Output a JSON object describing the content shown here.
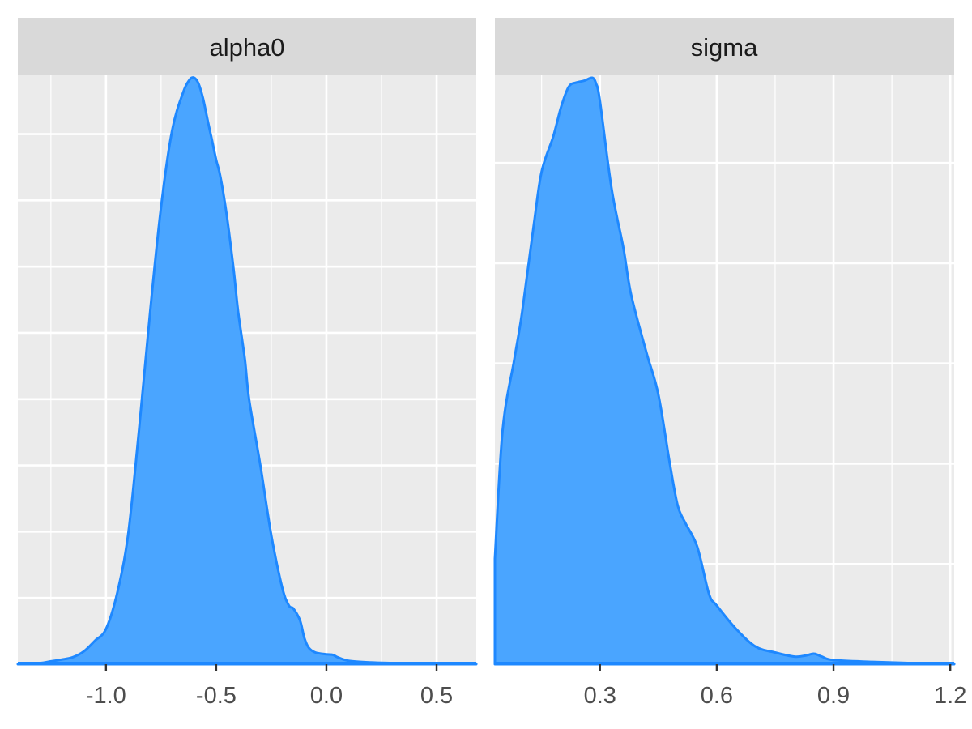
{
  "chart_data": [
    {
      "type": "area",
      "facet": "alpha0",
      "x_ticks": [
        -1.0,
        -0.5,
        0.0,
        0.5
      ],
      "x_tick_labels": [
        "-1.0",
        "-0.5",
        "0.0",
        "0.5"
      ],
      "xlim": [
        -1.4,
        0.68
      ],
      "ylim": [
        0,
        1.0
      ],
      "grid": true,
      "fill_color": "#4aa5ff",
      "line_color": "#1e88ff",
      "x": [
        -1.4,
        -1.3,
        -1.25,
        -1.2,
        -1.15,
        -1.1,
        -1.05,
        -1.0,
        -0.95,
        -0.9,
        -0.85,
        -0.8,
        -0.75,
        -0.7,
        -0.65,
        -0.62,
        -0.6,
        -0.58,
        -0.56,
        -0.54,
        -0.52,
        -0.5,
        -0.48,
        -0.45,
        -0.42,
        -0.4,
        -0.37,
        -0.35,
        -0.3,
        -0.25,
        -0.2,
        -0.17,
        -0.15,
        -0.12,
        -0.1,
        -0.08,
        -0.05,
        0.0,
        0.03,
        0.05,
        0.1,
        0.2,
        0.3,
        0.5,
        0.68
      ],
      "y": [
        0.0,
        0.002,
        0.005,
        0.008,
        0.012,
        0.022,
        0.04,
        0.06,
        0.12,
        0.22,
        0.4,
        0.6,
        0.78,
        0.91,
        0.975,
        0.997,
        1.0,
        0.99,
        0.965,
        0.93,
        0.895,
        0.86,
        0.83,
        0.76,
        0.67,
        0.6,
        0.52,
        0.45,
        0.34,
        0.22,
        0.13,
        0.1,
        0.095,
        0.075,
        0.045,
        0.028,
        0.02,
        0.017,
        0.016,
        0.012,
        0.006,
        0.003,
        0.002,
        0.001,
        0.001
      ]
    },
    {
      "type": "area",
      "facet": "sigma",
      "x_ticks": [
        0.3,
        0.6,
        0.9,
        1.2
      ],
      "x_tick_labels": [
        "0.3",
        "0.6",
        "0.9",
        "1.2"
      ],
      "xlim": [
        0.03,
        1.21
      ],
      "ylim": [
        0,
        1.0
      ],
      "grid": true,
      "fill_color": "#4aa5ff",
      "line_color": "#1e88ff",
      "x": [
        0.03,
        0.05,
        0.08,
        0.1,
        0.13,
        0.15,
        0.18,
        0.2,
        0.22,
        0.24,
        0.26,
        0.28,
        0.29,
        0.3,
        0.33,
        0.36,
        0.38,
        0.42,
        0.45,
        0.48,
        0.5,
        0.52,
        0.55,
        0.58,
        0.6,
        0.65,
        0.7,
        0.75,
        0.8,
        0.83,
        0.85,
        0.87,
        0.9,
        1.0,
        1.1,
        1.21
      ],
      "y": [
        0.18,
        0.4,
        0.52,
        0.6,
        0.75,
        0.84,
        0.9,
        0.95,
        0.985,
        0.992,
        0.995,
        1.0,
        0.99,
        0.96,
        0.81,
        0.71,
        0.63,
        0.53,
        0.46,
        0.34,
        0.27,
        0.24,
        0.2,
        0.12,
        0.1,
        0.06,
        0.03,
        0.02,
        0.013,
        0.015,
        0.018,
        0.013,
        0.007,
        0.004,
        0.002,
        0.001
      ]
    }
  ]
}
